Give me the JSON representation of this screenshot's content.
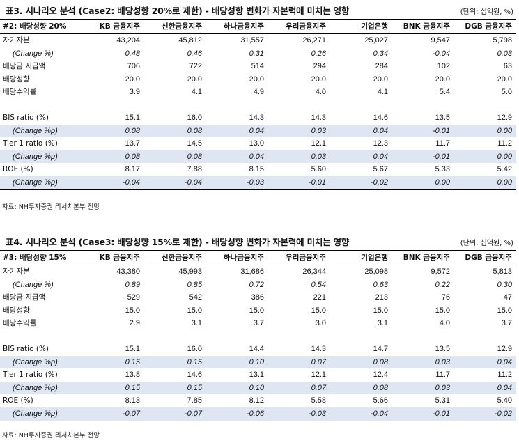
{
  "columns": [
    "KB 금융지주",
    "신한금융지주",
    "하나금융지주",
    "우리금융지주",
    "기업은행",
    "BNK 금융지주",
    "DGB 금융지주"
  ],
  "table3": {
    "title": "표3. 시나리오 분석 (Case2: 배당성향 20%로 제한) - 배당성향 변화가 자본력에 미치는 영향",
    "unit": "(단위: 십억원, %)",
    "header_label": "#2: 배당성향 20%",
    "source": "자료: NH투자증권 리서치본부 전망",
    "rows": [
      {
        "label": "자기자본",
        "values": [
          "43,204",
          "45,812",
          "31,557",
          "26,271",
          "25,027",
          "9,547",
          "5,798"
        ]
      },
      {
        "label": "(Change %)",
        "values": [
          "0.48",
          "0.46",
          "0.31",
          "0.26",
          "0.34",
          "-0.04",
          "0.03"
        ]
      },
      {
        "label": "배당금 지급액",
        "values": [
          "706",
          "722",
          "514",
          "294",
          "284",
          "102",
          "63"
        ]
      },
      {
        "label": "배당성향",
        "values": [
          "20.0",
          "20.0",
          "20.0",
          "20.0",
          "20.0",
          "20.0",
          "20.0"
        ]
      },
      {
        "label": "배당수익률",
        "values": [
          "3.9",
          "4.1",
          "4.9",
          "4.0",
          "4.1",
          "5.4",
          "5.0"
        ]
      },
      {
        "label": "BIS ratio (%)",
        "values": [
          "15.1",
          "16.0",
          "14.3",
          "14.3",
          "14.6",
          "13.5",
          "12.9"
        ]
      },
      {
        "label": "(Change %p)",
        "values": [
          "0.08",
          "0.08",
          "0.04",
          "0.03",
          "0.04",
          "-0.01",
          "0.00"
        ]
      },
      {
        "label": "Tier 1 ratio (%)",
        "values": [
          "13.7",
          "14.5",
          "13.0",
          "12.1",
          "12.3",
          "11.7",
          "11.2"
        ]
      },
      {
        "label": "(Change %p)",
        "values": [
          "0.08",
          "0.08",
          "0.04",
          "0.03",
          "0.04",
          "-0.01",
          "0.00"
        ]
      },
      {
        "label": "ROE (%)",
        "values": [
          "8.17",
          "7.88",
          "8.15",
          "5.60",
          "5.67",
          "5.33",
          "5.42"
        ]
      },
      {
        "label": "(Change %p)",
        "values": [
          "-0.04",
          "-0.04",
          "-0.03",
          "-0.01",
          "-0.02",
          "0.00",
          "0.00"
        ]
      }
    ]
  },
  "table4": {
    "title": "표4. 시나리오 분석 (Case3: 배당성향 15%로 제한) - 배당성향 변화가 자본력에 미치는 영향",
    "unit": "(단위: 십억원, %)",
    "header_label": "#3: 배당성향 15%",
    "source": "자료: NH투자증권 리서치본부 전망",
    "rows": [
      {
        "label": "자기자본",
        "values": [
          "43,380",
          "45,993",
          "31,686",
          "26,344",
          "25,098",
          "9,572",
          "5,813"
        ]
      },
      {
        "label": "(Change %)",
        "values": [
          "0.89",
          "0.85",
          "0.72",
          "0.54",
          "0.63",
          "0.22",
          "0.30"
        ]
      },
      {
        "label": "배당금 지급액",
        "values": [
          "529",
          "542",
          "386",
          "221",
          "213",
          "76",
          "47"
        ]
      },
      {
        "label": "배당성향",
        "values": [
          "15.0",
          "15.0",
          "15.0",
          "15.0",
          "15.0",
          "15.0",
          "15.0"
        ]
      },
      {
        "label": "배당수익률",
        "values": [
          "2.9",
          "3.1",
          "3.7",
          "3.0",
          "3.1",
          "4.0",
          "3.7"
        ]
      },
      {
        "label": "BIS ratio (%)",
        "values": [
          "15.1",
          "16.0",
          "14.4",
          "14.3",
          "14.7",
          "13.5",
          "12.9"
        ]
      },
      {
        "label": "(Change %p)",
        "values": [
          "0.15",
          "0.15",
          "0.10",
          "0.07",
          "0.08",
          "0.03",
          "0.04"
        ]
      },
      {
        "label": "Tier 1 ratio (%)",
        "values": [
          "13.8",
          "14.6",
          "13.1",
          "12.1",
          "12.4",
          "11.7",
          "11.2"
        ]
      },
      {
        "label": "(Change %p)",
        "values": [
          "0.15",
          "0.15",
          "0.10",
          "0.07",
          "0.08",
          "0.03",
          "0.04"
        ]
      },
      {
        "label": "ROE (%)",
        "values": [
          "8.13",
          "7.85",
          "8.12",
          "5.58",
          "5.66",
          "5.31",
          "5.40"
        ]
      },
      {
        "label": "(Change %p)",
        "values": [
          "-0.07",
          "-0.07",
          "-0.06",
          "-0.03",
          "-0.04",
          "-0.01",
          "-0.02"
        ]
      }
    ]
  }
}
